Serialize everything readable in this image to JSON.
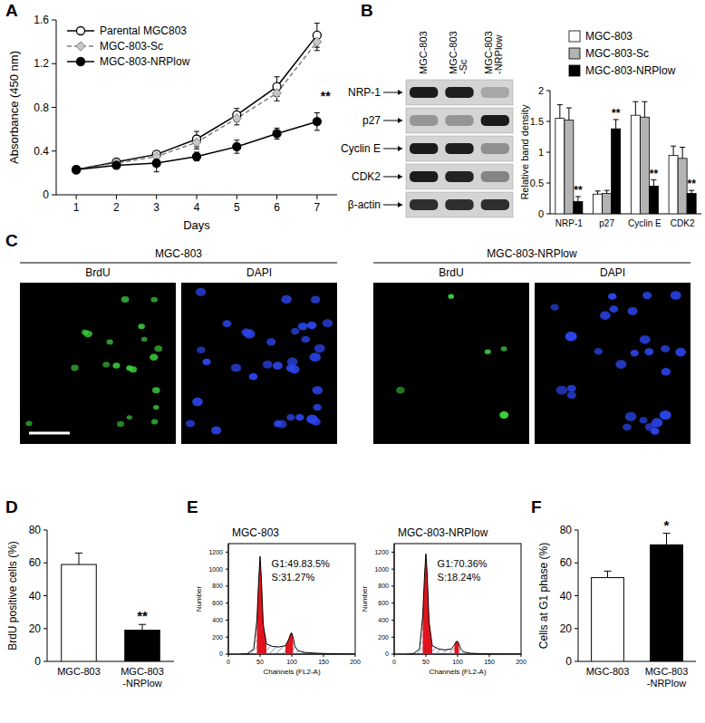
{
  "panel_labels": [
    "A",
    "B",
    "C",
    "D",
    "E",
    "F"
  ],
  "blot": {
    "columns": [
      "MGC-803",
      "MGC-803-Sc",
      "MGC-803-NRPlow"
    ],
    "rows": [
      "NRP-1",
      "p27",
      "Cyclin E",
      "CDK2",
      "β-actin"
    ]
  },
  "microscopy": {
    "groups": [
      {
        "title": "MGC-803",
        "channels": [
          "BrdU",
          "DAPI"
        ]
      },
      {
        "title": "MGC-803-NRPlow",
        "channels": [
          "BrdU",
          "DAPI"
        ]
      }
    ]
  },
  "chart_data": [
    {
      "type": "line",
      "x": [
        1,
        2,
        3,
        4,
        5,
        6,
        7
      ],
      "xlim": [
        0.5,
        7.5
      ],
      "xticks": [
        1,
        2,
        3,
        4,
        5,
        6,
        7
      ],
      "ylim": [
        0,
        1.6
      ],
      "yticks": [
        0,
        0.4,
        0.8,
        1.2,
        1.6
      ],
      "x_label": "Days",
      "y_label": "Absorbance (450 nm)",
      "legend": "upper left",
      "series": [
        {
          "name": "Parental MGC803",
          "color": "#000000",
          "marker": "open-circle",
          "line_style": "solid",
          "values": [
            0.23,
            0.3,
            0.37,
            0.51,
            0.73,
            0.99,
            1.46
          ],
          "errors": [
            0.02,
            0.03,
            0.03,
            0.07,
            0.06,
            0.09,
            0.11
          ]
        },
        {
          "name": "MGC-803-Sc",
          "color": "#808080",
          "marker": "diamond",
          "line_style": "dashed",
          "values": [
            0.23,
            0.29,
            0.35,
            0.48,
            0.7,
            0.93,
            1.4
          ],
          "errors": [
            0.02,
            0.03,
            0.03,
            0.06,
            0.06,
            0.07,
            0.08
          ]
        },
        {
          "name": "MGC-803-NRPlow",
          "color": "#000000",
          "marker": "circle",
          "line_style": "solid",
          "values": [
            0.23,
            0.27,
            0.29,
            0.35,
            0.44,
            0.56,
            0.67
          ],
          "errors": [
            0.02,
            0.03,
            0.08,
            0.04,
            0.06,
            0.05,
            0.08
          ],
          "significance": [
            null,
            null,
            null,
            null,
            null,
            null,
            "**"
          ]
        }
      ]
    },
    {
      "type": "bar",
      "categories": [
        "NRP-1",
        "p27",
        "Cyclin E",
        "CDK2"
      ],
      "ylim": [
        0,
        2
      ],
      "yticks": [
        0,
        0.5,
        1,
        1.5,
        2
      ],
      "y_label": "Relative band density",
      "legend": "top",
      "series": [
        {
          "name": "MGC-803",
          "color": "#ffffff",
          "values": [
            1.55,
            0.32,
            1.6,
            0.95
          ],
          "errors": [
            0.22,
            0.05,
            0.22,
            0.15
          ]
        },
        {
          "name": "MGC-803-Sc",
          "color": "#b3b3b3",
          "values": [
            1.52,
            0.33,
            1.57,
            0.9
          ],
          "errors": [
            0.2,
            0.05,
            0.25,
            0.18
          ]
        },
        {
          "name": "MGC-803-NRPlow",
          "color": "#000000",
          "values": [
            0.2,
            1.38,
            0.45,
            0.33
          ],
          "errors": [
            0.08,
            0.15,
            0.1,
            0.05
          ],
          "significance": [
            "**",
            "**",
            "**",
            "**"
          ]
        }
      ]
    },
    {
      "type": "bar",
      "categories": [
        "MGC-803",
        "MGC-803-NRPlow"
      ],
      "values": [
        59,
        19
      ],
      "errors": [
        7,
        3.5
      ],
      "colors": [
        "#ffffff",
        "#000000"
      ],
      "significance": [
        null,
        "**"
      ],
      "ylim": [
        0,
        80
      ],
      "yticks": [
        0,
        20,
        40,
        60,
        80
      ],
      "y_label": "BrdU positive cells (%)"
    },
    {
      "type": "area",
      "title": "MGC-803",
      "x": [
        20,
        30,
        40,
        45,
        48,
        50,
        52,
        55,
        60,
        70,
        80,
        90,
        95,
        98,
        100,
        102,
        105,
        110,
        120,
        140,
        160,
        200
      ],
      "values": [
        0,
        5,
        60,
        400,
        900,
        1150,
        900,
        350,
        120,
        90,
        85,
        100,
        170,
        240,
        250,
        200,
        90,
        40,
        20,
        10,
        5,
        0
      ],
      "xlim": [
        0,
        200
      ],
      "xticks": [
        0,
        50,
        100,
        150,
        200
      ],
      "ylim": [
        0,
        1300
      ],
      "yticks": [
        0,
        200,
        400,
        600,
        800,
        1000,
        1200
      ],
      "x_label": "Channels (FL2-A)",
      "y_label": "Number",
      "annotations": [
        "G1:49.83.5%",
        "S:31.27%"
      ]
    },
    {
      "type": "area",
      "title": "MGC-803-NRPlow",
      "x": [
        20,
        30,
        40,
        45,
        48,
        50,
        52,
        55,
        60,
        70,
        80,
        90,
        95,
        98,
        100,
        102,
        105,
        110,
        120,
        140,
        160,
        200
      ],
      "values": [
        0,
        5,
        60,
        450,
        950,
        1180,
        950,
        380,
        100,
        60,
        50,
        60,
        110,
        150,
        150,
        120,
        60,
        25,
        10,
        5,
        2,
        0
      ],
      "xlim": [
        0,
        200
      ],
      "xticks": [
        0,
        50,
        100,
        150,
        200
      ],
      "ylim": [
        0,
        1300
      ],
      "yticks": [
        0,
        200,
        400,
        600,
        800,
        1000,
        1200
      ],
      "x_label": "Channels (FL2-A)",
      "y_label": "Number",
      "annotations": [
        "G1:70.36%",
        "S:18.24%"
      ]
    },
    {
      "type": "bar",
      "categories": [
        "MGC-803",
        "MGC-803-NRPlow"
      ],
      "values": [
        51,
        71
      ],
      "errors": [
        4,
        7
      ],
      "colors": [
        "#ffffff",
        "#000000"
      ],
      "significance": [
        null,
        "*"
      ],
      "ylim": [
        0,
        80
      ],
      "yticks": [
        0,
        20,
        40,
        60,
        80
      ],
      "y_label": "Cells at G1 phase (%)"
    }
  ]
}
